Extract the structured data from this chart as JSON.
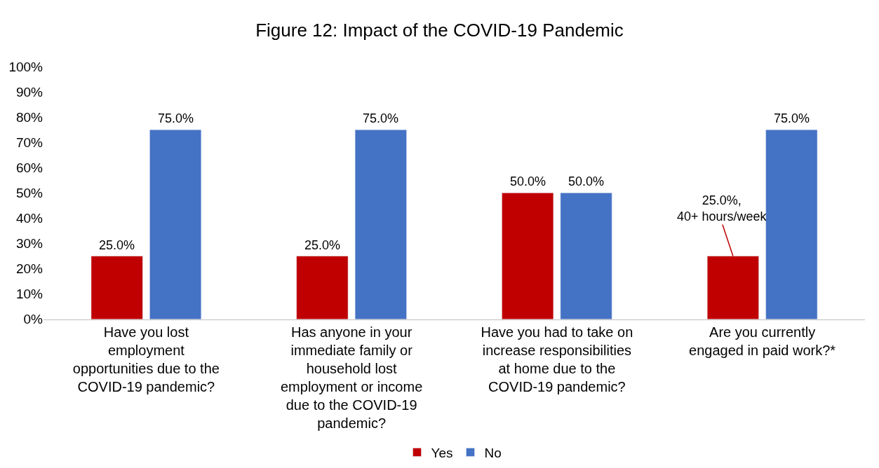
{
  "chart_data": {
    "type": "bar",
    "title": "Figure 12: Impact of the COVID-19 Pandemic",
    "categories": [
      "Have you lost\nemployment\nopportunities due to the\nCOVID-19 pandemic?",
      "Has anyone in your\nimmediate family or\nhousehold lost\nemployment or income\ndue to the COVID-19\npandemic?",
      "Have you had to take on\nincrease responsibilities\nat home due to the\nCOVID-19 pandemic?",
      "Are you currently\nengaged in paid work?*"
    ],
    "series": [
      {
        "name": "Yes",
        "color": "#c00000",
        "values": [
          25,
          25,
          50,
          25
        ],
        "value_labels": [
          "25.0%",
          "25.0%",
          "50.0%",
          "25.0%,\n40+ hours/week"
        ]
      },
      {
        "name": "No",
        "color": "#4472c4",
        "values": [
          75,
          75,
          50,
          75
        ],
        "value_labels": [
          "75.0%",
          "75.0%",
          "50.0%",
          "75.0%"
        ]
      }
    ],
    "ylim": [
      0,
      100
    ],
    "yticks": [
      {
        "value": 0,
        "label": "0%"
      },
      {
        "value": 10,
        "label": "10%"
      },
      {
        "value": 20,
        "label": "20%"
      },
      {
        "value": 30,
        "label": "30%"
      },
      {
        "value": 40,
        "label": "40%"
      },
      {
        "value": 50,
        "label": "50%"
      },
      {
        "value": 60,
        "label": "60%"
      },
      {
        "value": 70,
        "label": "70%"
      },
      {
        "value": 80,
        "label": "80%"
      },
      {
        "value": 90,
        "label": "90%"
      },
      {
        "value": 100,
        "label": "100%"
      }
    ],
    "grid": false,
    "legend": "bottom"
  }
}
